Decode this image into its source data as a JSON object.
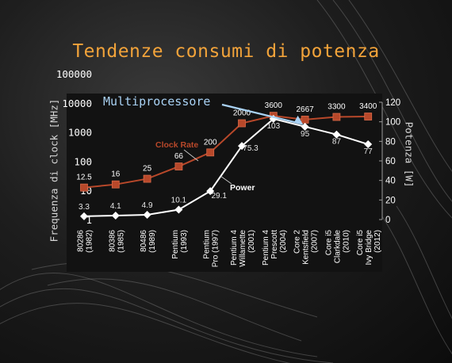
{
  "slide": {
    "title": "Tendenze consumi di potenza",
    "annotation": "Multiprocessore"
  },
  "chart_data": {
    "type": "line",
    "categories": [
      [
        "80286",
        "(1982)"
      ],
      [
        "80386",
        "(1985)"
      ],
      [
        "80486",
        "(1989)"
      ],
      [
        "Pentium",
        "(1993)"
      ],
      [
        "Pentium",
        "Pro (1997)"
      ],
      [
        "Pentium 4",
        "Willamette",
        "(2001)"
      ],
      [
        "Pentium 4",
        "Prescott",
        "(2004)"
      ],
      [
        "Core 2",
        "Kentsfield",
        "(2007)"
      ],
      [
        "Core i5",
        "Clarkdale",
        "(2010)"
      ],
      [
        "Core i5",
        "Ivy Bridge",
        "(2012)"
      ]
    ],
    "series": [
      {
        "name": "Clock Rate",
        "axis": "left",
        "color": "#b8482a",
        "marker": "square",
        "values": [
          12.5,
          16,
          25,
          66,
          200,
          2000,
          3600,
          2667,
          3300,
          3400
        ],
        "labels": [
          "12.5",
          "16",
          "25",
          "66",
          "200",
          "2000",
          "3600",
          "2667",
          "3300",
          "3400"
        ]
      },
      {
        "name": "Power",
        "axis": "right",
        "color": "#ffffff",
        "marker": "diamond",
        "values": [
          3.3,
          4.1,
          4.9,
          10.1,
          29.1,
          75.3,
          103,
          95,
          87,
          77
        ],
        "labels": [
          "3.3",
          "4.1",
          "4.9",
          "10.1",
          "29.1",
          "75.3",
          "103",
          "95",
          "87",
          "77"
        ]
      }
    ],
    "y_left": {
      "label": "Frequenza di clock [MHz]",
      "scale": "log",
      "range": [
        1,
        100000
      ],
      "ticks": [
        "1",
        "10",
        "100",
        "1000",
        "10000",
        "100000"
      ]
    },
    "y_right": {
      "label": "Potenza [W]",
      "range": [
        0,
        120
      ],
      "ticks": [
        "0",
        "20",
        "40",
        "60",
        "80",
        "100",
        "120"
      ]
    },
    "colors": {
      "plot_bg": "#121212",
      "clock": "#b8482a",
      "power": "#ffffff",
      "title": "#f2a33a",
      "annotation": "#a9d2f4"
    }
  }
}
